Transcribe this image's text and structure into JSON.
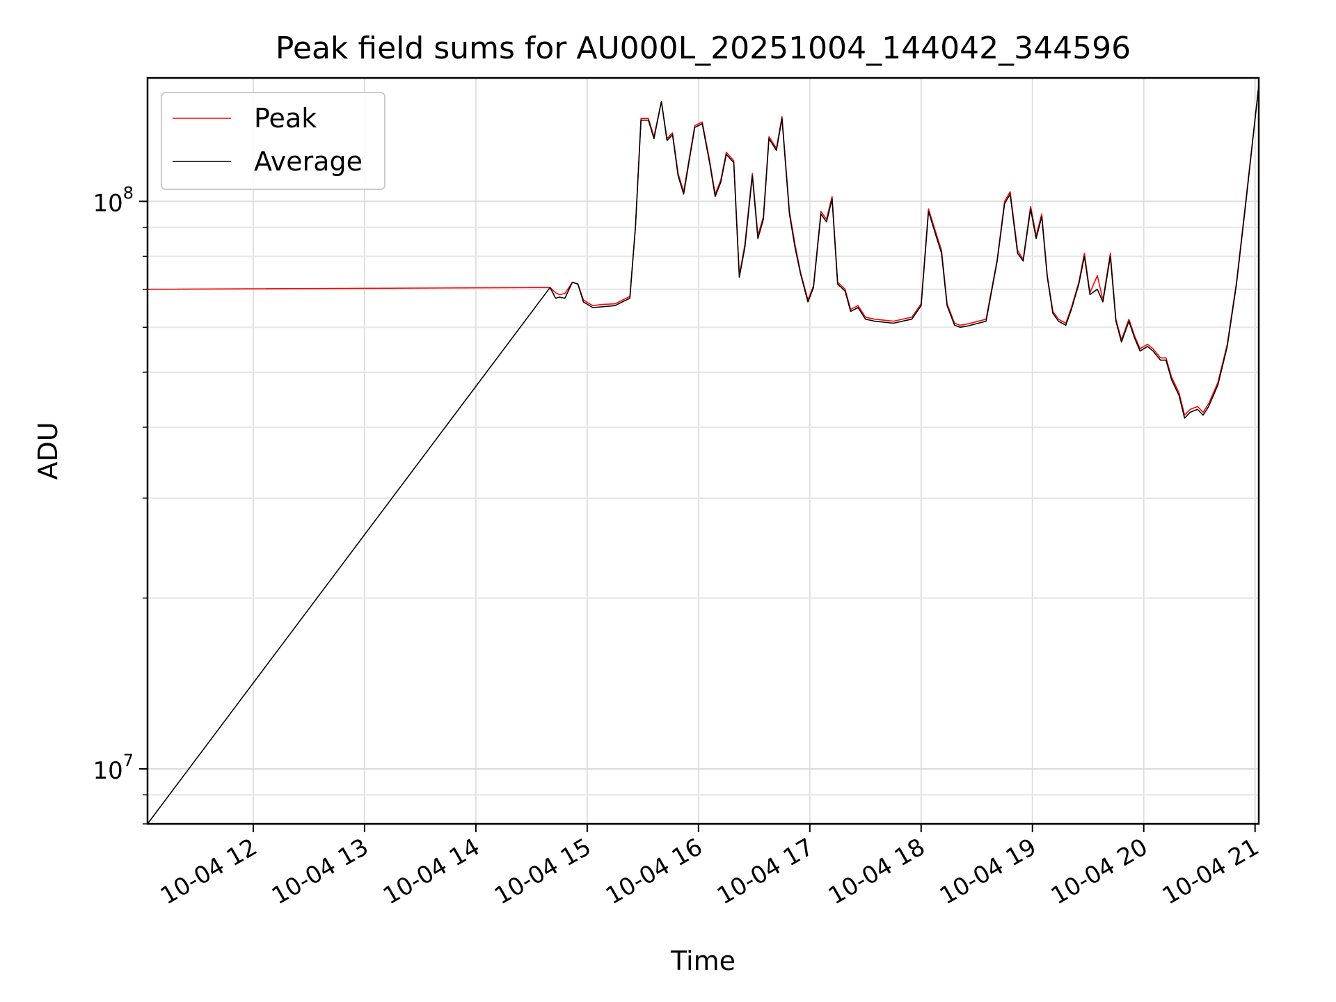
{
  "chart_data": {
    "type": "line",
    "title": "Peak field sums for AU000L_20251004_144042_344596",
    "xlabel": "Time",
    "ylabel": "ADU",
    "yscale": "log",
    "xlim": [
      "2025-10-04 11:03",
      "2025-10-04 21:02"
    ],
    "ylim": [
      8000000,
      165000000
    ],
    "x_ticks": [
      {
        "value": "2025-10-04 12:00",
        "label": "10-04 12"
      },
      {
        "value": "2025-10-04 13:00",
        "label": "10-04 13"
      },
      {
        "value": "2025-10-04 14:00",
        "label": "10-04 14"
      },
      {
        "value": "2025-10-04 15:00",
        "label": "10-04 15"
      },
      {
        "value": "2025-10-04 16:00",
        "label": "10-04 16"
      },
      {
        "value": "2025-10-04 17:00",
        "label": "10-04 17"
      },
      {
        "value": "2025-10-04 18:00",
        "label": "10-04 18"
      },
      {
        "value": "2025-10-04 19:00",
        "label": "10-04 19"
      },
      {
        "value": "2025-10-04 20:00",
        "label": "10-04 20"
      },
      {
        "value": "2025-10-04 21:00",
        "label": "10-04 21"
      }
    ],
    "y_ticks": [
      {
        "value": 10000000,
        "base": "10",
        "exp": "7"
      },
      {
        "value": 100000000,
        "base": "10",
        "exp": "8"
      }
    ],
    "grid": true,
    "legend": "upper left",
    "series": [
      {
        "name": "Peak",
        "color": "#ff0000",
        "x": [
          "2025-10-04 11:03",
          "2025-10-04 14:40",
          "2025-10-04 14:43",
          "2025-10-04 14:45",
          "2025-10-04 14:48",
          "2025-10-04 14:52",
          "2025-10-04 14:55",
          "2025-10-04 14:58",
          "2025-10-04 15:03",
          "2025-10-04 15:08",
          "2025-10-04 15:15",
          "2025-10-04 15:23",
          "2025-10-04 15:26",
          "2025-10-04 15:29",
          "2025-10-04 15:33",
          "2025-10-04 15:36",
          "2025-10-04 15:40",
          "2025-10-04 15:43",
          "2025-10-04 15:46",
          "2025-10-04 15:49",
          "2025-10-04 15:52",
          "2025-10-04 15:55",
          "2025-10-04 15:58",
          "2025-10-04 16:02",
          "2025-10-04 16:06",
          "2025-10-04 16:09",
          "2025-10-04 16:12",
          "2025-10-04 16:15",
          "2025-10-04 16:19",
          "2025-10-04 16:22",
          "2025-10-04 16:25",
          "2025-10-04 16:29",
          "2025-10-04 16:32",
          "2025-10-04 16:35",
          "2025-10-04 16:38",
          "2025-10-04 16:42",
          "2025-10-04 16:45",
          "2025-10-04 16:49",
          "2025-10-04 16:52",
          "2025-10-04 16:55",
          "2025-10-04 16:59",
          "2025-10-04 17:02",
          "2025-10-04 17:06",
          "2025-10-04 17:09",
          "2025-10-04 17:12",
          "2025-10-04 17:15",
          "2025-10-04 17:19",
          "2025-10-04 17:22",
          "2025-10-04 17:26",
          "2025-10-04 17:30",
          "2025-10-04 17:35",
          "2025-10-04 17:45",
          "2025-10-04 17:55",
          "2025-10-04 18:00",
          "2025-10-04 18:04",
          "2025-10-04 18:08",
          "2025-10-04 18:11",
          "2025-10-04 18:14",
          "2025-10-04 18:18",
          "2025-10-04 18:21",
          "2025-10-04 18:25",
          "2025-10-04 18:35",
          "2025-10-04 18:41",
          "2025-10-04 18:45",
          "2025-10-04 18:48",
          "2025-10-04 18:52",
          "2025-10-04 18:55",
          "2025-10-04 18:59",
          "2025-10-04 19:02",
          "2025-10-04 19:05",
          "2025-10-04 19:08",
          "2025-10-04 19:11",
          "2025-10-04 19:14",
          "2025-10-04 19:18",
          "2025-10-04 19:21",
          "2025-10-04 19:25",
          "2025-10-04 19:28",
          "2025-10-04 19:31",
          "2025-10-04 19:35",
          "2025-10-04 19:38",
          "2025-10-04 19:42",
          "2025-10-04 19:45",
          "2025-10-04 19:48",
          "2025-10-04 19:52",
          "2025-10-04 19:55",
          "2025-10-04 19:58",
          "2025-10-04 20:02",
          "2025-10-04 20:05",
          "2025-10-04 20:09",
          "2025-10-04 20:12",
          "2025-10-04 20:15",
          "2025-10-04 20:19",
          "2025-10-04 20:22",
          "2025-10-04 20:25",
          "2025-10-04 20:29",
          "2025-10-04 20:32",
          "2025-10-04 20:35",
          "2025-10-04 20:40",
          "2025-10-04 20:45",
          "2025-10-04 20:50",
          "2025-10-04 20:55",
          "2025-10-04 21:02"
        ],
        "values": [
          70000000,
          70500000,
          69000000,
          68500000,
          68800000,
          72000000,
          71500000,
          67000000,
          65500000,
          65800000,
          66000000,
          68000000,
          90000000,
          140000000,
          140000000,
          130000000,
          150000000,
          129000000,
          132000000,
          112000000,
          104000000,
          119000000,
          136000000,
          138000000,
          118000000,
          103000000,
          109000000,
          122000000,
          118000000,
          74000000,
          84000000,
          112000000,
          87000000,
          94000000,
          130000000,
          124000000,
          141000000,
          96000000,
          84000000,
          75000000,
          67000000,
          71000000,
          96000000,
          93000000,
          102000000,
          72000000,
          70000000,
          64500000,
          65500000,
          62500000,
          62000000,
          61500000,
          62500000,
          66000000,
          97000000,
          88000000,
          82000000,
          66000000,
          61000000,
          60500000,
          60800000,
          62000000,
          79000000,
          100000000,
          104000000,
          82000000,
          79000000,
          98000000,
          87000000,
          95000000,
          74000000,
          64000000,
          62000000,
          61000000,
          65000000,
          72000000,
          81000000,
          69000000,
          74000000,
          67000000,
          81000000,
          62000000,
          57000000,
          62000000,
          58000000,
          55000000,
          56000000,
          55000000,
          53000000,
          53000000,
          49000000,
          46000000,
          42000000,
          43000000,
          43500000,
          42500000,
          44000000,
          48000000,
          56000000,
          72000000,
          100000000,
          160000000
        ]
      },
      {
        "name": "Average",
        "color": "#000000",
        "x": [
          "2025-10-04 11:03",
          "2025-10-04 14:40",
          "2025-10-04 14:43",
          "2025-10-04 14:45",
          "2025-10-04 14:48",
          "2025-10-04 14:52",
          "2025-10-04 14:55",
          "2025-10-04 14:58",
          "2025-10-04 15:03",
          "2025-10-04 15:08",
          "2025-10-04 15:15",
          "2025-10-04 15:23",
          "2025-10-04 15:26",
          "2025-10-04 15:29",
          "2025-10-04 15:33",
          "2025-10-04 15:36",
          "2025-10-04 15:40",
          "2025-10-04 15:43",
          "2025-10-04 15:46",
          "2025-10-04 15:49",
          "2025-10-04 15:52",
          "2025-10-04 15:55",
          "2025-10-04 15:58",
          "2025-10-04 16:02",
          "2025-10-04 16:06",
          "2025-10-04 16:09",
          "2025-10-04 16:12",
          "2025-10-04 16:15",
          "2025-10-04 16:19",
          "2025-10-04 16:22",
          "2025-10-04 16:25",
          "2025-10-04 16:29",
          "2025-10-04 16:32",
          "2025-10-04 16:35",
          "2025-10-04 16:38",
          "2025-10-04 16:42",
          "2025-10-04 16:45",
          "2025-10-04 16:49",
          "2025-10-04 16:52",
          "2025-10-04 16:55",
          "2025-10-04 16:59",
          "2025-10-04 17:02",
          "2025-10-04 17:06",
          "2025-10-04 17:09",
          "2025-10-04 17:12",
          "2025-10-04 17:15",
          "2025-10-04 17:19",
          "2025-10-04 17:22",
          "2025-10-04 17:26",
          "2025-10-04 17:30",
          "2025-10-04 17:35",
          "2025-10-04 17:45",
          "2025-10-04 17:55",
          "2025-10-04 18:00",
          "2025-10-04 18:04",
          "2025-10-04 18:08",
          "2025-10-04 18:11",
          "2025-10-04 18:14",
          "2025-10-04 18:18",
          "2025-10-04 18:21",
          "2025-10-04 18:25",
          "2025-10-04 18:35",
          "2025-10-04 18:41",
          "2025-10-04 18:45",
          "2025-10-04 18:48",
          "2025-10-04 18:52",
          "2025-10-04 18:55",
          "2025-10-04 18:59",
          "2025-10-04 19:02",
          "2025-10-04 19:05",
          "2025-10-04 19:08",
          "2025-10-04 19:11",
          "2025-10-04 19:14",
          "2025-10-04 19:18",
          "2025-10-04 19:21",
          "2025-10-04 19:25",
          "2025-10-04 19:28",
          "2025-10-04 19:31",
          "2025-10-04 19:35",
          "2025-10-04 19:38",
          "2025-10-04 19:42",
          "2025-10-04 19:45",
          "2025-10-04 19:48",
          "2025-10-04 19:52",
          "2025-10-04 19:55",
          "2025-10-04 19:58",
          "2025-10-04 20:02",
          "2025-10-04 20:05",
          "2025-10-04 20:09",
          "2025-10-04 20:12",
          "2025-10-04 20:15",
          "2025-10-04 20:19",
          "2025-10-04 20:22",
          "2025-10-04 20:25",
          "2025-10-04 20:29",
          "2025-10-04 20:32",
          "2025-10-04 20:35",
          "2025-10-04 20:40",
          "2025-10-04 20:45",
          "2025-10-04 20:50",
          "2025-10-04 20:55",
          "2025-10-04 21:02"
        ],
        "values": [
          8000000,
          70500000,
          67500000,
          67800000,
          67500000,
          72000000,
          71500000,
          66500000,
          65000000,
          65200000,
          65500000,
          67500000,
          90000000,
          139000000,
          139000000,
          129000000,
          150000000,
          128000000,
          131000000,
          111000000,
          103000000,
          118000000,
          135000000,
          137000000,
          117000000,
          102000000,
          108000000,
          121000000,
          117000000,
          73500000,
          83000000,
          111000000,
          86000000,
          93000000,
          129000000,
          123000000,
          140000000,
          95000000,
          83000000,
          74500000,
          66500000,
          70500000,
          95000000,
          92000000,
          101000000,
          71500000,
          69500000,
          64000000,
          65000000,
          62000000,
          61500000,
          61000000,
          62000000,
          65500000,
          96000000,
          87000000,
          81000000,
          65500000,
          60500000,
          60000000,
          60300000,
          61500000,
          78500000,
          99000000,
          103000000,
          81000000,
          78500000,
          97000000,
          86000000,
          94000000,
          73500000,
          63500000,
          61500000,
          60500000,
          64500000,
          71500000,
          80000000,
          68500000,
          70000000,
          66500000,
          80000000,
          61500000,
          56500000,
          61500000,
          57500000,
          54500000,
          55500000,
          54500000,
          52500000,
          52500000,
          48500000,
          45500000,
          41500000,
          42500000,
          43000000,
          42000000,
          43500000,
          47500000,
          55500000,
          71500000,
          99000000,
          160000000
        ]
      }
    ]
  }
}
